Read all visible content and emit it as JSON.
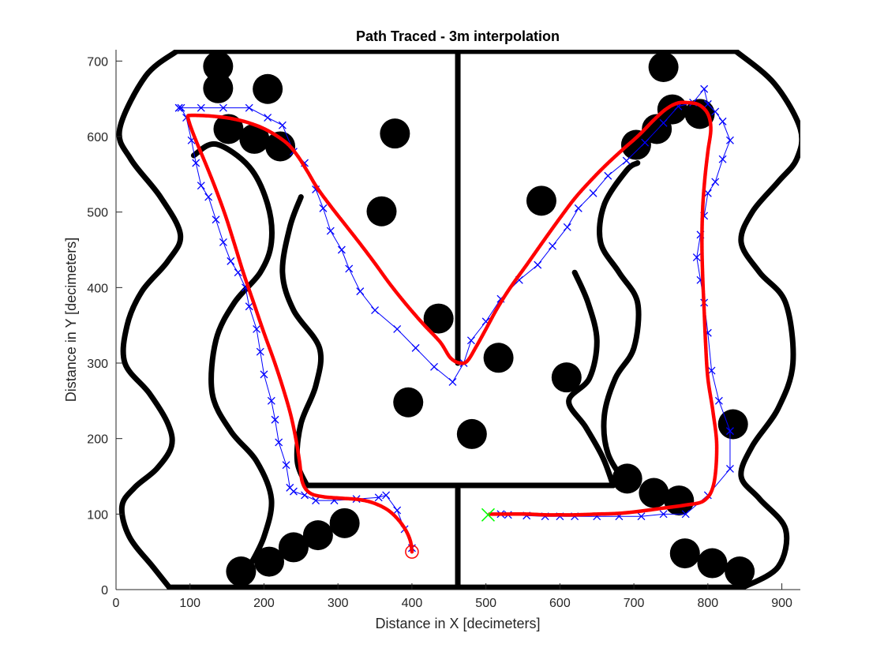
{
  "chart_data": {
    "type": "scatter",
    "title": "Path Traced - 3m interpolation",
    "xlabel": "Distance in X [decimeters]",
    "ylabel": "Distance in Y [decimeters]",
    "xlim": [
      0,
      925
    ],
    "ylim": [
      0,
      715
    ],
    "xticks": [
      0,
      100,
      200,
      300,
      400,
      500,
      600,
      700,
      800,
      900
    ],
    "yticks": [
      0,
      100,
      200,
      300,
      400,
      500,
      600,
      700
    ],
    "grid": false,
    "colors": {
      "walls": "#000000",
      "obstacles": "#000000",
      "waypoints": "#0000ff",
      "path": "#ff0000",
      "start": "#00ff00",
      "goal": "#ff0000"
    },
    "walls": [
      {
        "name": "top-boundary",
        "x": [
          82,
          838
        ],
        "y": [
          713,
          713
        ]
      },
      {
        "name": "bottom-boundary",
        "x": [
          72,
          848
        ],
        "y": [
          3,
          3
        ]
      },
      {
        "name": "center-divider-top",
        "x": [
          462,
          462
        ],
        "y": [
          300,
          712
        ]
      },
      {
        "name": "center-divider-bottom",
        "x": [
          462,
          462
        ],
        "y": [
          3,
          133
        ]
      },
      {
        "name": "inner-horizontal-wall",
        "x": [
          258,
          672
        ],
        "y": [
          138,
          138
        ]
      },
      {
        "name": "left-outer-wall",
        "x": [
          82,
          40,
          5,
          20,
          60,
          87,
          70,
          35,
          15,
          12,
          45,
          70,
          75,
          55,
          25,
          8,
          18,
          50,
          72
        ],
        "y": [
          713,
          680,
          610,
          570,
          520,
          470,
          435,
          395,
          350,
          300,
          260,
          220,
          190,
          160,
          135,
          110,
          70,
          30,
          3
        ]
      },
      {
        "name": "left-inner-wall",
        "x": [
          105,
          135,
          180,
          205,
          210,
          195,
          160,
          135,
          130,
          155,
          190,
          210,
          200,
          180
        ],
        "y": [
          575,
          590,
          560,
          510,
          460,
          420,
          380,
          330,
          260,
          210,
          170,
          120,
          70,
          30
        ]
      },
      {
        "name": "right-outer-wall",
        "x": [
          838,
          890,
          925,
          920,
          895,
          860,
          845,
          870,
          905,
          915,
          895,
          860,
          845,
          870,
          905,
          895,
          848
        ],
        "y": [
          713,
          670,
          610,
          570,
          540,
          500,
          460,
          420,
          380,
          300,
          240,
          190,
          150,
          120,
          80,
          30,
          3
        ]
      },
      {
        "name": "right-inner-wall",
        "x": [
          705,
          690,
          660,
          655,
          680,
          705,
          700,
          675,
          660,
          665,
          690
        ],
        "y": [
          565,
          555,
          510,
          460,
          420,
          380,
          320,
          280,
          230,
          180,
          140
        ]
      },
      {
        "name": "center-left-wall",
        "x": [
          250,
          235,
          225,
          240,
          275,
          270,
          250,
          245,
          258
        ],
        "y": [
          520,
          480,
          420,
          370,
          320,
          270,
          220,
          170,
          138
        ]
      },
      {
        "name": "center-right-wall",
        "x": [
          620,
          638,
          650,
          640,
          612,
          635,
          658,
          672
        ],
        "y": [
          420,
          380,
          330,
          280,
          250,
          215,
          175,
          138
        ]
      }
    ],
    "obstacles": [
      {
        "x": 138,
        "y": 693
      },
      {
        "x": 138,
        "y": 664
      },
      {
        "x": 205,
        "y": 663
      },
      {
        "x": 152,
        "y": 610
      },
      {
        "x": 187,
        "y": 597
      },
      {
        "x": 222,
        "y": 587
      },
      {
        "x": 377,
        "y": 604
      },
      {
        "x": 359,
        "y": 501
      },
      {
        "x": 436,
        "y": 359
      },
      {
        "x": 517,
        "y": 307
      },
      {
        "x": 395,
        "y": 248
      },
      {
        "x": 481,
        "y": 206
      },
      {
        "x": 575,
        "y": 515
      },
      {
        "x": 609,
        "y": 281
      },
      {
        "x": 740,
        "y": 692
      },
      {
        "x": 752,
        "y": 636
      },
      {
        "x": 789,
        "y": 630
      },
      {
        "x": 731,
        "y": 610
      },
      {
        "x": 703,
        "y": 589
      },
      {
        "x": 691,
        "y": 147
      },
      {
        "x": 727,
        "y": 128
      },
      {
        "x": 761,
        "y": 118
      },
      {
        "x": 834,
        "y": 219
      },
      {
        "x": 769,
        "y": 48
      },
      {
        "x": 806,
        "y": 35
      },
      {
        "x": 843,
        "y": 24
      },
      {
        "x": 309,
        "y": 88
      },
      {
        "x": 273,
        "y": 72
      },
      {
        "x": 240,
        "y": 56
      },
      {
        "x": 207,
        "y": 37
      },
      {
        "x": 169,
        "y": 24
      }
    ],
    "series": [
      {
        "name": "waypoints",
        "marker": "x",
        "x": [
          400,
          390,
          380,
          365,
          355,
          325,
          295,
          270,
          255,
          240,
          235,
          230,
          220,
          215,
          210,
          200,
          195,
          190,
          180,
          175,
          165,
          155,
          145,
          135,
          125,
          115,
          108,
          102,
          95,
          88,
          85,
          85,
          115,
          145,
          180,
          205,
          225,
          240,
          255,
          270,
          280,
          290,
          305,
          315,
          330,
          350,
          380,
          405,
          430,
          455,
          470,
          480,
          500,
          520,
          545,
          570,
          590,
          610,
          625,
          645,
          665,
          690,
          715,
          740,
          760,
          780,
          795,
          800,
          810,
          820,
          830,
          820,
          810,
          800,
          795,
          790,
          785,
          790,
          795,
          800,
          805,
          815,
          830,
          830,
          800,
          770,
          740,
          710,
          680,
          650,
          620,
          600,
          580,
          555,
          530,
          520
        ],
        "y": [
          55,
          80,
          105,
          125,
          122,
          120,
          118,
          118,
          125,
          130,
          135,
          165,
          195,
          225,
          250,
          285,
          315,
          345,
          375,
          400,
          420,
          435,
          460,
          490,
          520,
          535,
          565,
          595,
          625,
          638,
          638,
          638,
          638,
          638,
          638,
          625,
          615,
          580,
          565,
          530,
          505,
          475,
          450,
          425,
          395,
          370,
          345,
          320,
          295,
          275,
          300,
          330,
          355,
          385,
          410,
          430,
          455,
          480,
          505,
          525,
          548,
          568,
          592,
          618,
          640,
          645,
          663,
          643,
          633,
          620,
          595,
          570,
          540,
          525,
          495,
          470,
          440,
          410,
          380,
          340,
          290,
          250,
          210,
          160,
          125,
          100,
          100,
          97,
          97,
          97,
          97,
          97,
          97,
          98,
          99,
          100
        ]
      },
      {
        "name": "traced-path",
        "marker": "dot",
        "x": [
          400,
          398,
          392,
          382,
          368,
          350,
          330,
          305,
          280,
          262,
          252,
          248,
          243,
          236,
          226,
          214,
          200,
          186,
          172,
          160,
          148,
          135,
          122,
          110,
          102,
          98,
          97,
          100,
          110,
          130,
          155,
          180,
          205,
          230,
          245,
          258,
          272,
          290,
          310,
          330,
          350,
          370,
          392,
          415,
          438,
          452,
          465,
          475,
          487,
          500,
          515,
          533,
          555,
          578,
          600,
          620,
          640,
          662,
          684,
          707,
          727,
          743,
          758,
          772,
          788,
          800,
          804,
          800,
          796,
          793,
          792,
          793,
          795,
          797,
          800,
          807,
          812,
          808,
          795,
          770,
          740,
          710,
          680,
          650,
          620,
          600,
          580,
          555,
          530,
          510,
          505
        ],
        "y": [
          50,
          64,
          78,
          92,
          105,
          114,
          119,
          121,
          123,
          128,
          142,
          170,
          200,
          232,
          266,
          302,
          340,
          380,
          420,
          458,
          495,
          530,
          562,
          590,
          610,
          622,
          627,
          628,
          628,
          627,
          624,
          618,
          608,
          592,
          575,
          555,
          532,
          508,
          483,
          458,
          432,
          405,
          378,
          352,
          328,
          307,
          300,
          303,
          322,
          345,
          372,
          400,
          430,
          462,
          492,
          518,
          540,
          562,
          582,
          602,
          622,
          636,
          644,
          645,
          642,
          630,
          610,
          580,
          545,
          505,
          460,
          415,
          370,
          325,
          280,
          235,
          190,
          140,
          118,
          112,
          108,
          104,
          101,
          100,
          99,
          99,
          99,
          100,
          100,
          100,
          100
        ]
      }
    ],
    "start_marker": {
      "x": 503,
      "y": 99
    },
    "goal_marker": {
      "x": 400,
      "y": 50
    }
  }
}
